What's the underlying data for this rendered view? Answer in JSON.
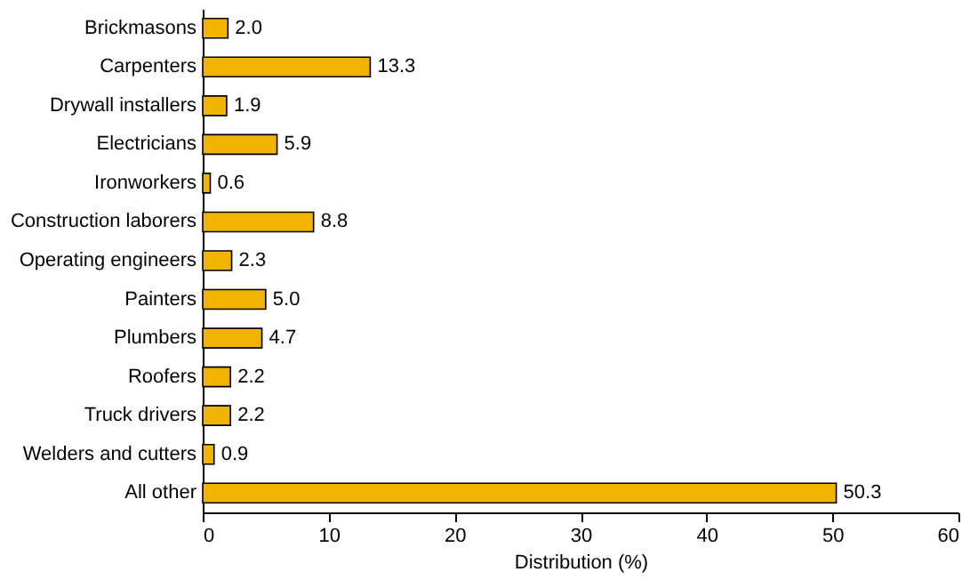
{
  "chart_data": {
    "type": "bar",
    "orientation": "horizontal",
    "xlabel": "Distribution (%)",
    "categories": [
      "Brickmasons",
      "Carpenters",
      "Drywall installers",
      "Electricians",
      "Ironworkers",
      "Construction laborers",
      "Operating engineers",
      "Painters",
      "Plumbers",
      "Roofers",
      "Truck drivers",
      "Welders and cutters",
      "All other"
    ],
    "values": [
      2.0,
      13.3,
      1.9,
      5.9,
      0.6,
      8.8,
      2.3,
      5.0,
      4.7,
      2.2,
      2.2,
      0.9,
      50.3
    ],
    "color": "#f0b400",
    "xlim": [
      0,
      60
    ],
    "xticks": [
      0,
      10,
      20,
      30,
      40,
      50,
      60
    ],
    "grid": false,
    "value_labels": [
      "2.0",
      "13.3",
      "1.9",
      "5.9",
      "0.6",
      "8.8",
      "2.3",
      "5.0",
      "4.7",
      "2.2",
      "2.2",
      "0.9",
      "50.3"
    ]
  }
}
